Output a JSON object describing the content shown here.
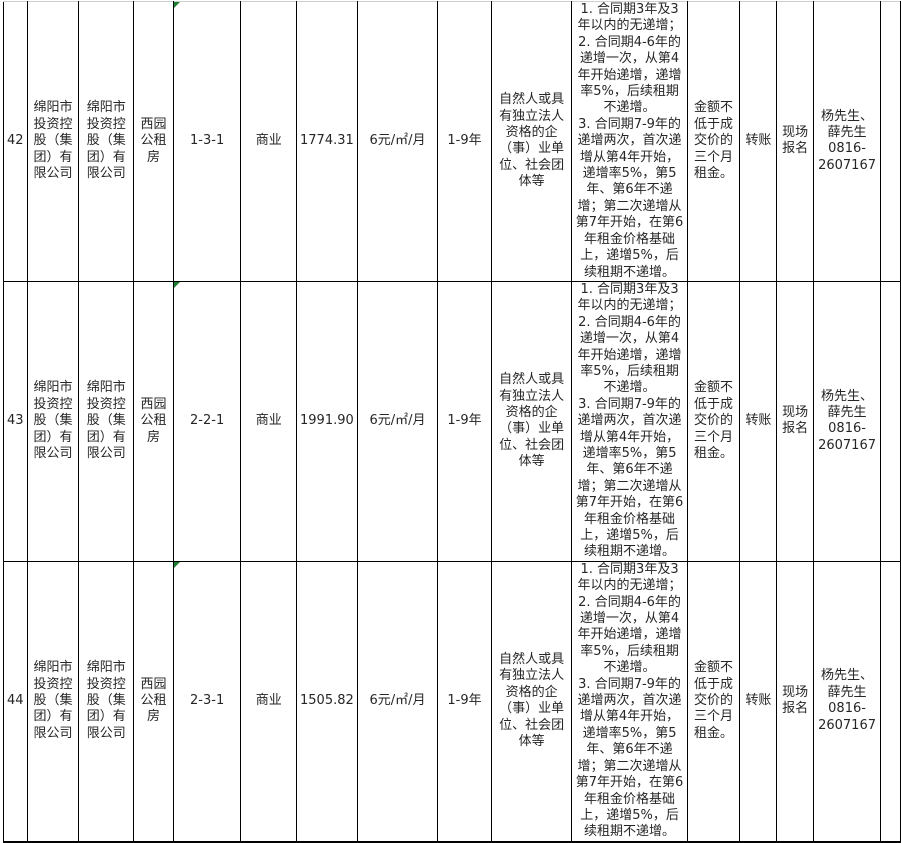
{
  "colors": {
    "grid_line": "#000000",
    "top_border": "#cfcfcf",
    "bottom_border": "#000000",
    "text": "#262626",
    "indicator_green": "#1e7e34",
    "background": "#ffffff"
  },
  "icons": {
    "unit_cell_flag": "green-corner-triangle"
  },
  "table": {
    "rows": [
      {
        "no": "42",
        "lessor": "绵阳市投资控股（集团）有限公司",
        "owner": "绵阳市投资控股（集团）有限公司",
        "project": "西园公租房",
        "unit": "1-3-1",
        "usage": "商业",
        "area": "1774.31",
        "price": "6元/㎡/月",
        "term": "1-9年",
        "tenant": "自然人或具有独立法人资格的企（事）业单位、社会团体等",
        "escalation": "1. 合同期3年及3年以内的无递增；\n2. 合同期4-6年的递增一次，从第4年开始递增，递增率5%，后续租期不递增。\n3. 合同期7-9年的递增两次，首次递增从第4年开始，递增率5%，第5年、第6年不递增；第二次递增从第7年开始，在第6年租金价格基础上，递增5%，后续租期不递增。",
        "deposit": "金额不低于成交价的三个月租金。",
        "payment": "转账",
        "signup": "现场\n报名",
        "contact": "杨先生、\n薛先生\n0816-\n2607167"
      },
      {
        "no": "43",
        "lessor": "绵阳市投资控股（集团）有限公司",
        "owner": "绵阳市投资控股（集团）有限公司",
        "project": "西园公租房",
        "unit": "2-2-1",
        "usage": "商业",
        "area": "1991.90",
        "price": "6元/㎡/月",
        "term": "1-9年",
        "tenant": "自然人或具有独立法人资格的企（事）业单位、社会团体等",
        "escalation": "1. 合同期3年及3年以内的无递增；\n2. 合同期4-6年的递增一次，从第4年开始递增，递增率5%，后续租期不递增。\n3. 合同期7-9年的递增两次，首次递增从第4年开始，递增率5%，第5年、第6年不递增；第二次递增从第7年开始，在第6年租金价格基础上，递增5%，后续租期不递增。",
        "deposit": "金额不低于成交价的三个月租金。",
        "payment": "转账",
        "signup": "现场\n报名",
        "contact": "杨先生、\n薛先生\n0816-\n2607167"
      },
      {
        "no": "44",
        "lessor": "绵阳市投资控股（集团）有限公司",
        "owner": "绵阳市投资控股（集团）有限公司",
        "project": "西园公租房",
        "unit": "2-3-1",
        "usage": "商业",
        "area": "1505.82",
        "price": "6元/㎡/月",
        "term": "1-9年",
        "tenant": "自然人或具有独立法人资格的企（事）业单位、社会团体等",
        "escalation": "1. 合同期3年及3年以内的无递增；\n2. 合同期4-6年的递增一次，从第4年开始递增，递增率5%，后续租期不递增。\n3. 合同期7-9年的递增两次，首次递增从第4年开始，递增率5%，第5年、第6年不递增；第二次递增从第7年开始，在第6年租金价格基础上，递增5%，后续租期不递增。",
        "deposit": "金额不低于成交价的三个月租金。",
        "payment": "转账",
        "signup": "现场\n报名",
        "contact": "杨先生、\n薛先生\n0816-\n2607167"
      }
    ]
  }
}
